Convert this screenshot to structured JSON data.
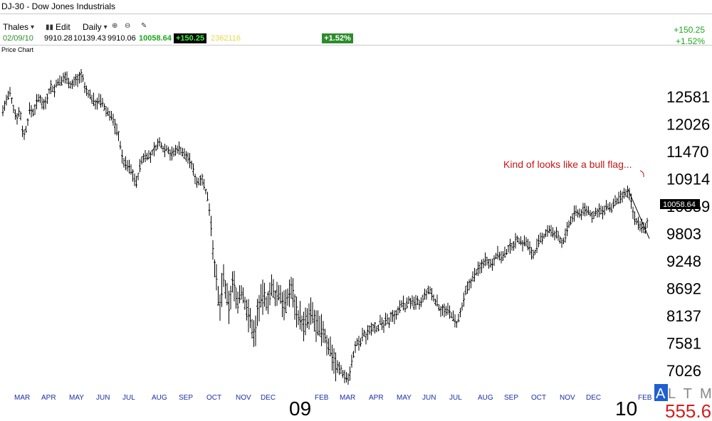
{
  "window": {
    "title": "DJ-30  -  Dow Jones Industrials"
  },
  "toolbar": {
    "user": "Thales",
    "edit_label": "Edit",
    "interval_label": "Daily"
  },
  "quote": {
    "date": "02/09/10",
    "open": "9910.28",
    "high": "10139.43",
    "low": "9910.06",
    "last": "10058.64",
    "change": "+150.25",
    "volume": "2362116",
    "pct_change": "+1.52%"
  },
  "right_panel": {
    "change": "+150.25",
    "pct_change": "+1.52%"
  },
  "panel_label": "Price Chart",
  "price_tag": "10058.64",
  "annotation": "Kind of looks like a bull flag...",
  "corner": {
    "a": "A",
    "tml": "L T M L",
    "value": "555.6"
  },
  "colors": {
    "bars": "#000000",
    "annotation": "#c81414",
    "month_labels": "#1a2ea8",
    "up": "#1aa81a"
  },
  "chart_data": {
    "type": "bar",
    "subtype": "ohlc",
    "ylim": [
      6750,
      13100
    ],
    "yticks": [
      12581,
      12026,
      11470,
      10914,
      10359,
      9803,
      9248,
      8692,
      8137,
      7581,
      7026
    ],
    "months": [
      "MAR",
      "APR",
      "MAY",
      "JUN",
      "JUL",
      "AUG",
      "SEP",
      "OCT",
      "NOV",
      "DEC",
      "FEB",
      "MAR",
      "APR",
      "MAY",
      "JUN",
      "JUL",
      "AUG",
      "SEP",
      "OCT",
      "NOV",
      "DEC",
      "FEB"
    ],
    "years": [
      "09",
      "10"
    ],
    "series": [
      {
        "points": [
          [
            0,
            12300
          ],
          [
            5,
            12500
          ],
          [
            10,
            12650
          ],
          [
            14,
            12400
          ],
          [
            19,
            12150
          ],
          [
            24,
            12300
          ],
          [
            29,
            11750
          ],
          [
            34,
            12000
          ],
          [
            38,
            12350
          ],
          [
            43,
            12250
          ],
          [
            48,
            12500
          ],
          [
            53,
            12550
          ],
          [
            58,
            12400
          ],
          [
            63,
            12600
          ],
          [
            67,
            12800
          ],
          [
            72,
            12700
          ],
          [
            77,
            12900
          ],
          [
            82,
            12850
          ],
          [
            86,
            13000
          ],
          [
            91,
            12950
          ],
          [
            96,
            12800
          ],
          [
            101,
            12900
          ],
          [
            106,
            12950
          ],
          [
            111,
            13050
          ],
          [
            115,
            12750
          ],
          [
            120,
            12650
          ],
          [
            125,
            12550
          ],
          [
            130,
            12450
          ],
          [
            135,
            12500
          ],
          [
            140,
            12450
          ],
          [
            144,
            12300
          ],
          [
            149,
            12250
          ],
          [
            154,
            12150
          ],
          [
            158,
            11950
          ],
          [
            163,
            11800
          ],
          [
            168,
            11300
          ],
          [
            173,
            11200
          ],
          [
            178,
            11150
          ],
          [
            183,
            11000
          ],
          [
            188,
            10800
          ],
          [
            192,
            11150
          ],
          [
            197,
            11350
          ],
          [
            202,
            11400
          ],
          [
            207,
            11350
          ],
          [
            212,
            11500
          ],
          [
            217,
            11600
          ],
          [
            221,
            11650
          ],
          [
            226,
            11500
          ],
          [
            231,
            11550
          ],
          [
            236,
            11400
          ],
          [
            241,
            11450
          ],
          [
            246,
            11550
          ],
          [
            250,
            11500
          ],
          [
            255,
            11400
          ],
          [
            260,
            11350
          ],
          [
            265,
            11200
          ],
          [
            270,
            10950
          ],
          [
            274,
            10800
          ],
          [
            279,
            11000
          ],
          [
            284,
            10700
          ],
          [
            289,
            10450
          ],
          [
            292,
            10100
          ],
          [
            295,
            9500
          ],
          [
            298,
            9100
          ],
          [
            301,
            8700
          ],
          [
            304,
            8200
          ],
          [
            307,
            8600
          ],
          [
            310,
            8900
          ],
          [
            314,
            8500
          ],
          [
            318,
            8300
          ],
          [
            322,
            8800
          ],
          [
            326,
            8700
          ],
          [
            330,
            8400
          ],
          [
            334,
            8650
          ],
          [
            338,
            8500
          ],
          [
            342,
            8300
          ],
          [
            346,
            8100
          ],
          [
            350,
            7900
          ],
          [
            354,
            7700
          ],
          [
            358,
            8300
          ],
          [
            362,
            8400
          ],
          [
            366,
            8550
          ],
          [
            370,
            8400
          ],
          [
            374,
            8550
          ],
          [
            378,
            8700
          ],
          [
            382,
            8500
          ],
          [
            386,
            8600
          ],
          [
            390,
            8550
          ],
          [
            394,
            8400
          ],
          [
            398,
            8300
          ],
          [
            402,
            8650
          ],
          [
            406,
            8700
          ],
          [
            410,
            8400
          ],
          [
            414,
            8150
          ],
          [
            418,
            8100
          ],
          [
            422,
            7900
          ],
          [
            426,
            8000
          ],
          [
            430,
            8100
          ],
          [
            434,
            8200
          ],
          [
            438,
            8000
          ],
          [
            442,
            7900
          ],
          [
            446,
            7800
          ],
          [
            450,
            7850
          ],
          [
            454,
            7600
          ],
          [
            458,
            7500
          ],
          [
            462,
            7400
          ],
          [
            466,
            7200
          ],
          [
            470,
            7100
          ],
          [
            474,
            7050
          ],
          [
            478,
            6950
          ],
          [
            482,
            6900
          ],
          [
            486,
            6850
          ],
          [
            490,
            7200
          ],
          [
            494,
            7450
          ],
          [
            498,
            7600
          ],
          [
            502,
            7550
          ],
          [
            506,
            7800
          ],
          [
            510,
            7700
          ],
          [
            514,
            7850
          ],
          [
            518,
            7900
          ],
          [
            522,
            7950
          ],
          [
            526,
            7850
          ],
          [
            530,
            8000
          ],
          [
            534,
            7900
          ],
          [
            538,
            8050
          ],
          [
            542,
            8000
          ],
          [
            546,
            8200
          ],
          [
            550,
            8100
          ],
          [
            554,
            8250
          ],
          [
            558,
            8300
          ],
          [
            562,
            8400
          ],
          [
            566,
            8300
          ],
          [
            570,
            8450
          ],
          [
            574,
            8400
          ],
          [
            578,
            8350
          ],
          [
            582,
            8450
          ],
          [
            586,
            8300
          ],
          [
            590,
            8500
          ],
          [
            594,
            8550
          ],
          [
            598,
            8650
          ],
          [
            602,
            8600
          ],
          [
            606,
            8450
          ],
          [
            610,
            8400
          ],
          [
            614,
            8250
          ],
          [
            618,
            8300
          ],
          [
            622,
            8200
          ],
          [
            626,
            8250
          ],
          [
            630,
            8150
          ],
          [
            634,
            8050
          ],
          [
            638,
            7950
          ],
          [
            642,
            8150
          ],
          [
            646,
            8350
          ],
          [
            650,
            8600
          ],
          [
            654,
            8750
          ],
          [
            658,
            8850
          ],
          [
            662,
            8950
          ],
          [
            666,
            9050
          ],
          [
            670,
            9100
          ],
          [
            674,
            9200
          ],
          [
            678,
            9300
          ],
          [
            682,
            9250
          ],
          [
            686,
            9150
          ],
          [
            690,
            9300
          ],
          [
            694,
            9400
          ],
          [
            698,
            9350
          ],
          [
            702,
            9300
          ],
          [
            706,
            9400
          ],
          [
            710,
            9500
          ],
          [
            714,
            9550
          ],
          [
            718,
            9600
          ],
          [
            722,
            9700
          ],
          [
            726,
            9650
          ],
          [
            730,
            9600
          ],
          [
            734,
            9650
          ],
          [
            738,
            9550
          ],
          [
            742,
            9450
          ],
          [
            746,
            9350
          ],
          [
            750,
            9550
          ],
          [
            754,
            9650
          ],
          [
            758,
            9700
          ],
          [
            762,
            9800
          ],
          [
            766,
            9900
          ],
          [
            770,
            9850
          ],
          [
            774,
            9750
          ],
          [
            778,
            9800
          ],
          [
            782,
            9700
          ],
          [
            786,
            9600
          ],
          [
            790,
            9750
          ],
          [
            794,
            9950
          ],
          [
            798,
            10050
          ],
          [
            802,
            10200
          ],
          [
            806,
            10250
          ],
          [
            810,
            10200
          ],
          [
            814,
            10250
          ],
          [
            818,
            10300
          ],
          [
            822,
            10250
          ],
          [
            826,
            10200
          ],
          [
            830,
            10150
          ],
          [
            834,
            10250
          ],
          [
            838,
            10300
          ],
          [
            842,
            10200
          ],
          [
            846,
            10300
          ],
          [
            850,
            10350
          ],
          [
            854,
            10300
          ],
          [
            858,
            10400
          ],
          [
            862,
            10450
          ],
          [
            866,
            10500
          ],
          [
            870,
            10550
          ],
          [
            874,
            10600
          ],
          [
            878,
            10650
          ],
          [
            882,
            10500
          ],
          [
            886,
            10150
          ],
          [
            890,
            10050
          ],
          [
            894,
            10000
          ],
          [
            898,
            9950
          ],
          [
            902,
            9850
          ],
          [
            906,
            10058
          ]
        ]
      }
    ],
    "annotations": [
      {
        "text": "Kind of looks like a bull flag...",
        "type": "bull-flag",
        "from": [
          878,
          10700
        ],
        "to": [
          908,
          9700
        ]
      }
    ]
  }
}
